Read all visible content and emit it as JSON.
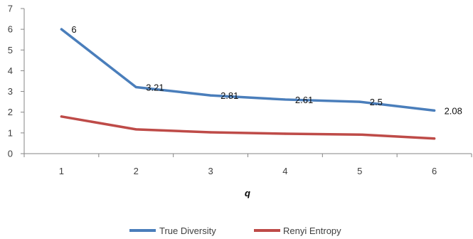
{
  "chart_data": {
    "type": "line",
    "title": "",
    "xlabel": "q",
    "ylabel": "",
    "categories": [
      "1",
      "2",
      "3",
      "4",
      "5",
      "6"
    ],
    "ylim": [
      0,
      7
    ],
    "y_ticks": [
      "0",
      "1",
      "2",
      "3",
      "4",
      "5",
      "6",
      "7"
    ],
    "grid": false,
    "legend_position": "bottom",
    "series": [
      {
        "name": "True Diversity",
        "color": "#4A7EBB",
        "values": [
          6,
          3.21,
          2.81,
          2.61,
          2.5,
          2.08
        ],
        "data_labels": [
          "6",
          "3.21",
          "2.81",
          "2.61",
          "2.5",
          "2.08"
        ]
      },
      {
        "name": "Renyi Entropy",
        "color": "#BE4B48",
        "values": [
          1.79,
          1.17,
          1.03,
          0.96,
          0.92,
          0.73
        ]
      }
    ]
  }
}
